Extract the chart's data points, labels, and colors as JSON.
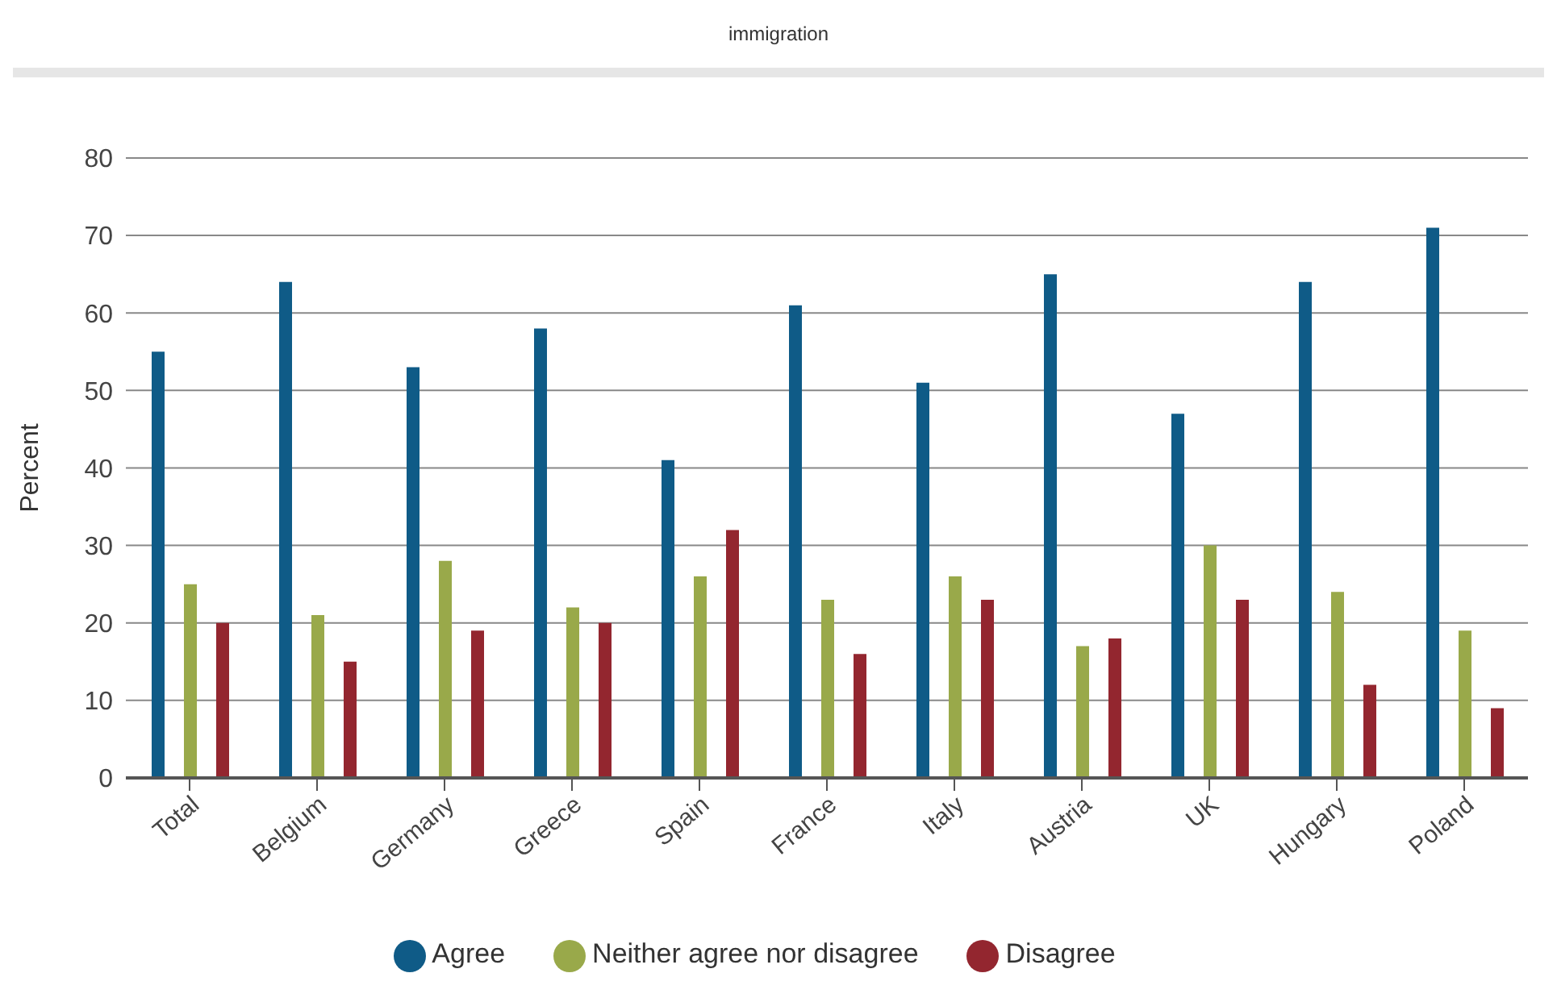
{
  "chart_data": {
    "type": "bar",
    "title": "immigration",
    "ylabel": "Percent",
    "categories": [
      "Total",
      "Belgium",
      "Germany",
      "Greece",
      "Spain",
      "France",
      "Italy",
      "Austria",
      "UK",
      "Hungary",
      "Poland"
    ],
    "series": [
      {
        "name": "Agree",
        "color": "#0f5b87",
        "values": [
          55,
          64,
          53,
          58,
          41,
          61,
          51,
          65,
          47,
          64,
          71
        ]
      },
      {
        "name": "Neither agree nor disagree",
        "color": "#99a94a",
        "values": [
          25,
          21,
          28,
          22,
          26,
          23,
          26,
          17,
          30,
          24,
          19
        ]
      },
      {
        "name": "Disagree",
        "color": "#93262f",
        "values": [
          20,
          15,
          19,
          20,
          32,
          16,
          23,
          18,
          23,
          12,
          9
        ]
      }
    ],
    "ylim": [
      0,
      80
    ],
    "yticks": [
      0,
      10,
      20,
      30,
      40,
      50,
      60,
      70,
      80
    ],
    "grid": "y",
    "legend": "bottom"
  }
}
